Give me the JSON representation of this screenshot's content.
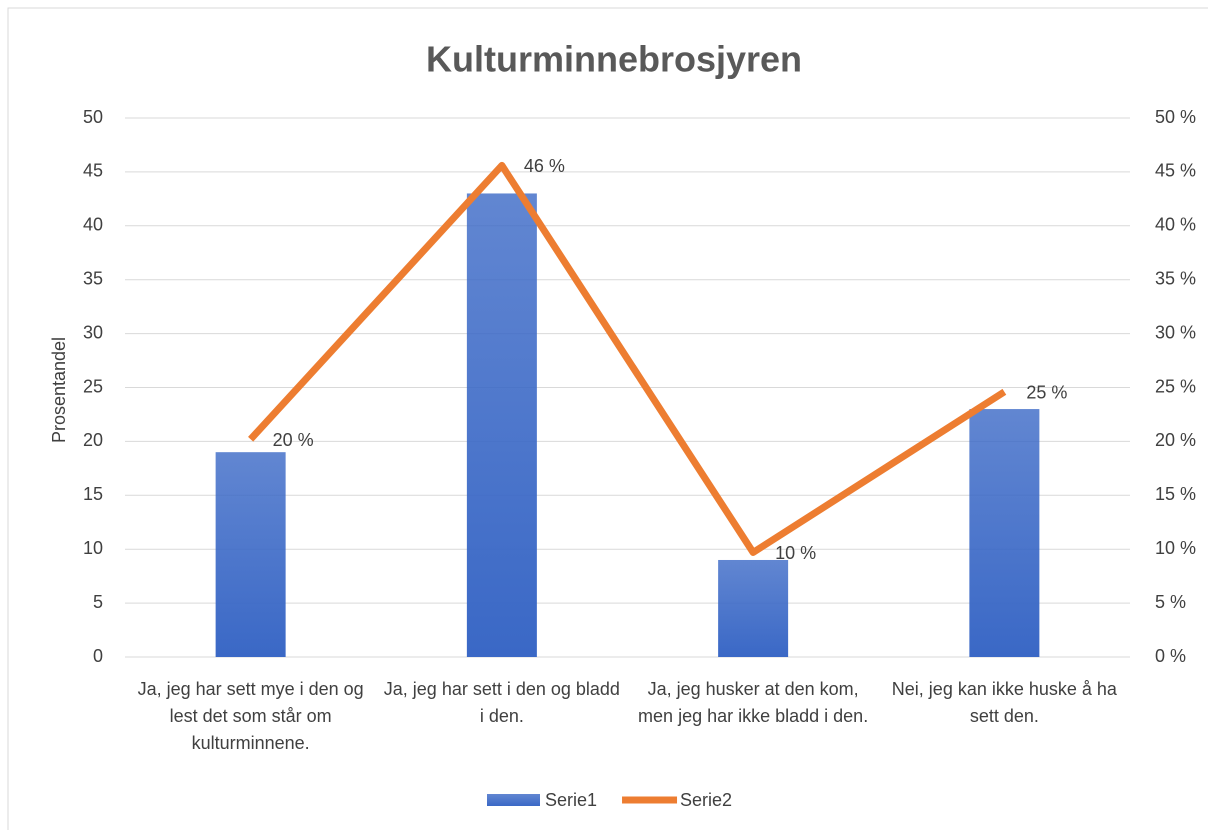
{
  "chart_data": {
    "type": "bar",
    "title": "Kulturminnebrosjyren",
    "y_label": "Prosentandel",
    "categories": [
      "Ja, jeg har sett mye i den og lest det som står om kulturminnene.",
      "Ja, jeg har sett i den og bladd i den.",
      "Ja, jeg husker at den kom, men jeg har ikke bladd i den.",
      "Nei, jeg kan ikke huske å ha sett den."
    ],
    "series": [
      {
        "name": "Serie1",
        "type": "bar",
        "color": "#3a68c6",
        "values": [
          19,
          43,
          9,
          23
        ]
      },
      {
        "name": "Serie2",
        "type": "line",
        "axis": "y2",
        "color": "#ed7d31",
        "values": [
          20.2,
          45.6,
          9.7,
          24.6
        ],
        "value_labels": [
          "20 %",
          "46 %",
          "10 %",
          "25 %"
        ]
      }
    ],
    "ylim": [
      0,
      50
    ],
    "yticks": [
      0,
      5,
      10,
      15,
      20,
      25,
      30,
      35,
      40,
      45,
      50
    ],
    "y2lim": [
      0,
      50
    ],
    "y2ticks": [
      {
        "value": 0,
        "label": "0 %"
      },
      {
        "value": 5,
        "label": "5 %"
      },
      {
        "value": 10,
        "label": "10 %"
      },
      {
        "value": 15,
        "label": "15 %"
      },
      {
        "value": 20,
        "label": "20 %"
      },
      {
        "value": 25,
        "label": "25 %"
      },
      {
        "value": 30,
        "label": "30 %"
      },
      {
        "value": 35,
        "label": "35 %"
      },
      {
        "value": 40,
        "label": "40 %"
      },
      {
        "value": 45,
        "label": "45 %"
      },
      {
        "value": 50,
        "label": "50 %"
      }
    ],
    "grid": true,
    "legend": "bottom"
  }
}
